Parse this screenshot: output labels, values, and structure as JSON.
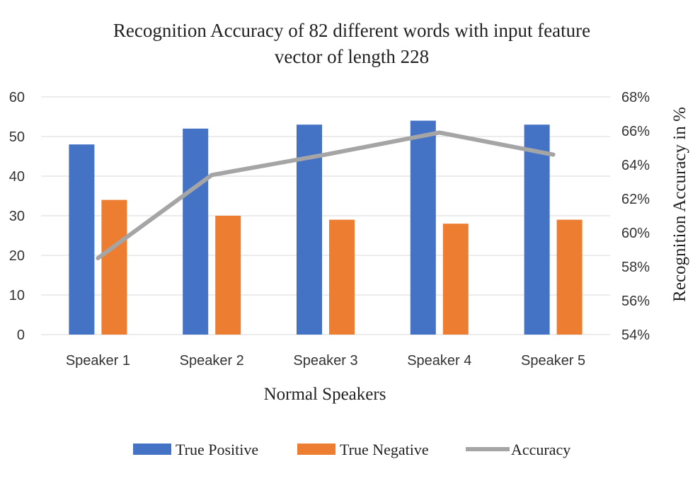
{
  "chart_data": {
    "type": "bar",
    "title_lines": [
      "Recognition Accuracy of 82 different words with input feature",
      "vector of length 228"
    ],
    "xlabel": "Normal Speakers",
    "ylabel": "",
    "y2label": "Recognition Accuracy in %",
    "categories": [
      "Speaker 1",
      "Speaker 2",
      "Speaker 3",
      "Speaker 4",
      "Speaker 5"
    ],
    "ylim": [
      0,
      60
    ],
    "yticks": [
      "0",
      "10",
      "20",
      "30",
      "40",
      "50",
      "60"
    ],
    "y2lim": [
      54,
      68
    ],
    "y2ticks": [
      "54%",
      "56%",
      "58%",
      "60%",
      "62%",
      "64%",
      "66%",
      "68%"
    ],
    "grid": true,
    "legend_position": "bottom",
    "series": [
      {
        "name": "True Positive",
        "kind": "bar",
        "axis": "left",
        "color": "#4472C4",
        "values": [
          48,
          52,
          53,
          54,
          53
        ]
      },
      {
        "name": "True Negative",
        "kind": "bar",
        "axis": "left",
        "color": "#ED7D31",
        "values": [
          34,
          30,
          29,
          28,
          29
        ]
      },
      {
        "name": "Accuracy",
        "kind": "line",
        "axis": "right",
        "color": "#A5A5A5",
        "values": [
          58.5,
          63.4,
          64.6,
          65.9,
          64.6
        ]
      }
    ]
  }
}
